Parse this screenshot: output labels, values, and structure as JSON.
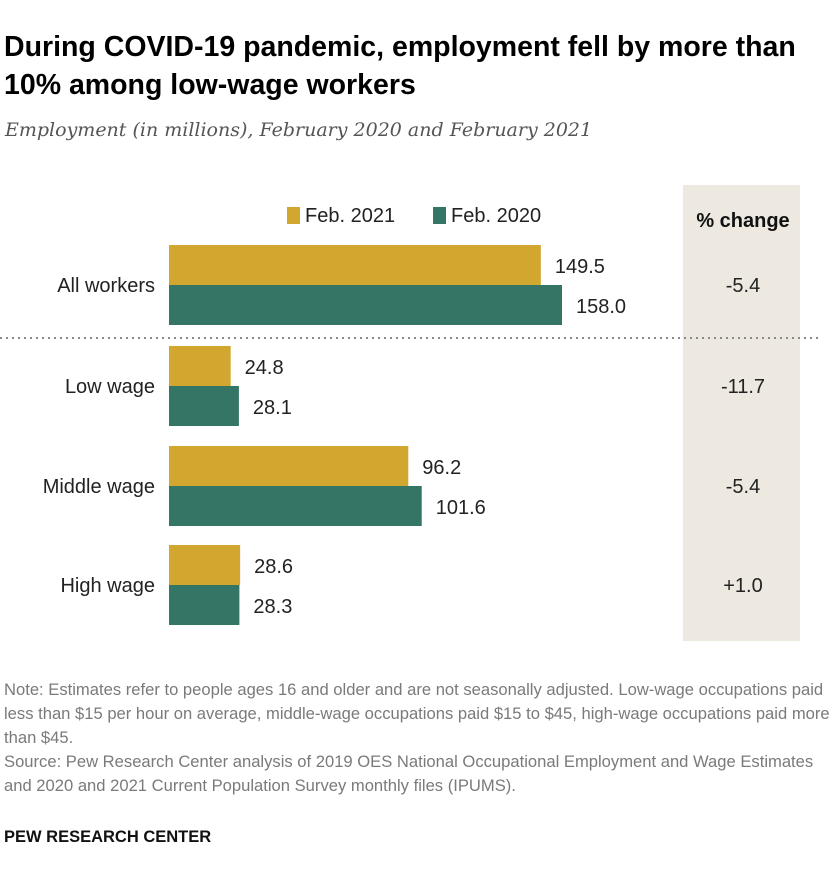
{
  "header": {
    "title": "During COVID-19 pandemic, employment fell by more than 10% among low-wage workers",
    "subtitle": "Employment (in millions), February 2020 and February 2021"
  },
  "chart_data": {
    "type": "bar",
    "orientation": "horizontal",
    "categories": [
      "All workers",
      "Low wage",
      "Middle wage",
      "High wage"
    ],
    "series": [
      {
        "name": "Feb. 2021",
        "color": "#d2a72f",
        "values": [
          149.5,
          24.8,
          96.2,
          28.6
        ]
      },
      {
        "name": "Feb. 2020",
        "color": "#357566",
        "values": [
          158.0,
          28.1,
          101.6,
          28.3
        ]
      }
    ],
    "value_labels": [
      [
        "149.5",
        "24.8",
        "96.2",
        "28.6"
      ],
      [
        "158.0",
        "28.1",
        "101.6",
        "28.3"
      ]
    ],
    "pct_change": {
      "header": "% change",
      "values": [
        "-5.4",
        "-11.7",
        "-5.4",
        "+1.0"
      ],
      "panel_color": "#ede9e0"
    },
    "legend_placement": "top",
    "grid": false,
    "xlim": [
      0,
      160
    ]
  },
  "footer": {
    "note": "Note: Estimates refer to people ages 16 and older and are not seasonally adjusted. Low-wage occupations paid less than $15 per hour on average, middle-wage occupations paid $15 to $45, high-wage occupations paid more than $45.",
    "source": "Source: Pew Research Center analysis of 2019 OES National Occupational Employment and Wage Estimates and 2020 and 2021 Current Population Survey monthly files (IPUMS).",
    "brand": "PEW RESEARCH CENTER"
  }
}
